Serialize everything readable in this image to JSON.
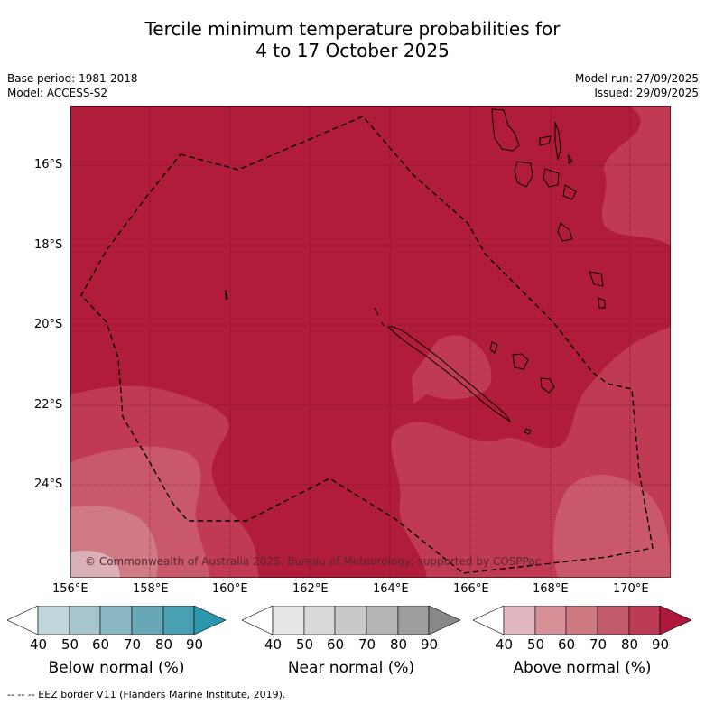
{
  "header": {
    "title_line1": "Tercile minimum temperature probabilities for",
    "title_line2": "4 to 17 October 2025",
    "base_period": "Base period: 1981-2018",
    "model": "Model: ACCESS-S2",
    "model_run": "Model run: 27/09/2025",
    "issued": "Issued: 29/09/2025"
  },
  "map": {
    "lat_ticks": [
      "16°S",
      "18°S",
      "20°S",
      "22°S",
      "24°S"
    ],
    "lon_ticks": [
      "156°E",
      "158°E",
      "160°E",
      "162°E",
      "164°E",
      "166°E",
      "168°E",
      "170°E"
    ],
    "copyright": "© Commonwealth of Australia 2025, Bureau of Meteorology, supported by COSPPac",
    "colors": {
      "above_90": "#b01c3a",
      "above_80": "#bf3a52",
      "above_70": "#c9586a",
      "above_60": "#d07a85",
      "above_50": "#dbb0b7"
    }
  },
  "colorbars": [
    {
      "label": "Below normal (%)",
      "ticks": [
        "40",
        "50",
        "60",
        "70",
        "80",
        "90"
      ],
      "colors": [
        "#ffffff",
        "#c2d7dd",
        "#a7c6cd",
        "#8bb7c2",
        "#68a7b6",
        "#48a0b2",
        "#2a97ad"
      ]
    },
    {
      "label": "Near normal (%)",
      "ticks": [
        "40",
        "50",
        "60",
        "70",
        "80",
        "90"
      ],
      "colors": [
        "#ffffff",
        "#e6e6e6",
        "#d9d9d9",
        "#c9c9c9",
        "#b5b5b5",
        "#9e9e9e",
        "#888888"
      ]
    },
    {
      "label": "Above normal (%)",
      "ticks": [
        "40",
        "50",
        "60",
        "70",
        "80",
        "90"
      ],
      "colors": [
        "#ffffff",
        "#e2b7bf",
        "#d99199",
        "#ce787f",
        "#c15a69",
        "#bc3a53",
        "#b0173c"
      ]
    }
  ],
  "footnote": "--  --  -- EEZ border V11 (Flanders Marine Institute, 2019)."
}
